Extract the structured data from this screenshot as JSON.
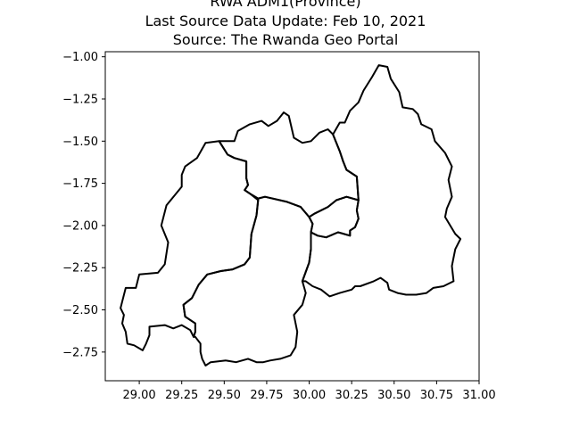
{
  "title": {
    "line1": "RWA ADM1(Province)",
    "line2": "Last Source Data Update: Feb 10, 2021",
    "line3": "Source: The Rwanda Geo Portal"
  },
  "chart_data": {
    "type": "map",
    "xlim": [
      28.8,
      31.0
    ],
    "ylim": [
      -2.92,
      -0.97
    ],
    "x_ticks": [
      "29.00",
      "29.25",
      "29.50",
      "29.75",
      "30.00",
      "30.25",
      "30.50",
      "30.75",
      "31.00"
    ],
    "x_tick_values": [
      29.0,
      29.25,
      29.5,
      29.75,
      30.0,
      30.25,
      30.5,
      30.75,
      31.0
    ],
    "y_ticks": [
      "−1.00",
      "−1.25",
      "−1.50",
      "−1.75",
      "−2.00",
      "−2.25",
      "−2.50",
      "−2.75"
    ],
    "y_tick_values": [
      -1.0,
      -1.25,
      -1.5,
      -1.75,
      -2.0,
      -2.25,
      -2.5,
      -2.75
    ],
    "grid": false,
    "regions": [
      {
        "id": "west",
        "coords": [
          [
            29.47,
            -1.5
          ],
          [
            29.39,
            -1.51
          ],
          [
            29.34,
            -1.6
          ],
          [
            29.27,
            -1.65
          ],
          [
            29.25,
            -1.7
          ],
          [
            29.25,
            -1.77
          ],
          [
            29.16,
            -1.88
          ],
          [
            29.13,
            -2.0
          ],
          [
            29.17,
            -2.1
          ],
          [
            29.15,
            -2.23
          ],
          [
            29.11,
            -2.28
          ],
          [
            29.0,
            -2.29
          ],
          [
            28.98,
            -2.37
          ],
          [
            28.92,
            -2.37
          ],
          [
            28.9,
            -2.45
          ],
          [
            28.89,
            -2.49
          ],
          [
            28.91,
            -2.53
          ],
          [
            28.9,
            -2.58
          ],
          [
            28.92,
            -2.63
          ],
          [
            28.93,
            -2.7
          ],
          [
            28.97,
            -2.71
          ],
          [
            29.02,
            -2.74
          ],
          [
            29.04,
            -2.7
          ],
          [
            29.06,
            -2.65
          ],
          [
            29.06,
            -2.6
          ],
          [
            29.15,
            -2.59
          ],
          [
            29.2,
            -2.61
          ],
          [
            29.25,
            -2.59
          ],
          [
            29.3,
            -2.62
          ],
          [
            29.32,
            -2.66
          ],
          [
            29.33,
            -2.63
          ],
          [
            29.33,
            -2.58
          ],
          [
            29.27,
            -2.54
          ],
          [
            29.26,
            -2.47
          ],
          [
            29.31,
            -2.43
          ],
          [
            29.35,
            -2.35
          ],
          [
            29.4,
            -2.29
          ],
          [
            29.48,
            -2.27
          ],
          [
            29.55,
            -2.26
          ],
          [
            29.62,
            -2.23
          ],
          [
            29.65,
            -2.19
          ],
          [
            29.66,
            -2.05
          ],
          [
            29.69,
            -1.94
          ],
          [
            29.7,
            -1.85
          ],
          [
            29.65,
            -1.81
          ],
          [
            29.62,
            -1.79
          ],
          [
            29.64,
            -1.76
          ],
          [
            29.63,
            -1.72
          ],
          [
            29.63,
            -1.62
          ],
          [
            29.56,
            -1.6
          ],
          [
            29.52,
            -1.58
          ],
          [
            29.47,
            -1.5
          ]
        ]
      },
      {
        "id": "north",
        "coords": [
          [
            29.47,
            -1.5
          ],
          [
            29.56,
            -1.5
          ],
          [
            29.58,
            -1.44
          ],
          [
            29.65,
            -1.4
          ],
          [
            29.72,
            -1.38
          ],
          [
            29.76,
            -1.41
          ],
          [
            29.81,
            -1.38
          ],
          [
            29.85,
            -1.33
          ],
          [
            29.88,
            -1.35
          ],
          [
            29.91,
            -1.48
          ],
          [
            29.96,
            -1.51
          ],
          [
            30.01,
            -1.5
          ],
          [
            30.06,
            -1.45
          ],
          [
            30.11,
            -1.43
          ],
          [
            30.14,
            -1.46
          ],
          [
            30.18,
            -1.56
          ],
          [
            30.2,
            -1.62
          ],
          [
            30.22,
            -1.67
          ],
          [
            30.28,
            -1.71
          ],
          [
            30.29,
            -1.85
          ],
          [
            30.22,
            -1.83
          ],
          [
            30.16,
            -1.85
          ],
          [
            30.11,
            -1.89
          ],
          [
            30.03,
            -1.93
          ],
          [
            30.0,
            -1.95
          ],
          [
            29.95,
            -1.89
          ],
          [
            29.87,
            -1.86
          ],
          [
            29.74,
            -1.83
          ],
          [
            29.7,
            -1.84
          ],
          [
            29.65,
            -1.81
          ],
          [
            29.62,
            -1.79
          ],
          [
            29.64,
            -1.76
          ],
          [
            29.63,
            -1.72
          ],
          [
            29.63,
            -1.62
          ],
          [
            29.56,
            -1.6
          ],
          [
            29.52,
            -1.58
          ],
          [
            29.47,
            -1.5
          ]
        ]
      },
      {
        "id": "kigali",
        "coords": [
          [
            30.0,
            -1.95
          ],
          [
            30.03,
            -1.93
          ],
          [
            30.11,
            -1.89
          ],
          [
            30.16,
            -1.85
          ],
          [
            30.22,
            -1.83
          ],
          [
            30.29,
            -1.85
          ],
          [
            30.28,
            -1.91
          ],
          [
            30.29,
            -1.96
          ],
          [
            30.27,
            -2.01
          ],
          [
            30.24,
            -2.03
          ],
          [
            30.24,
            -2.06
          ],
          [
            30.17,
            -2.04
          ],
          [
            30.1,
            -2.07
          ],
          [
            30.05,
            -2.06
          ],
          [
            30.01,
            -2.04
          ],
          [
            30.02,
            -1.99
          ],
          [
            30.0,
            -1.95
          ]
        ]
      },
      {
        "id": "east",
        "coords": [
          [
            30.14,
            -1.46
          ],
          [
            30.18,
            -1.39
          ],
          [
            30.21,
            -1.39
          ],
          [
            30.24,
            -1.32
          ],
          [
            30.29,
            -1.27
          ],
          [
            30.32,
            -1.2
          ],
          [
            30.37,
            -1.12
          ],
          [
            30.41,
            -1.05
          ],
          [
            30.46,
            -1.06
          ],
          [
            30.48,
            -1.13
          ],
          [
            30.53,
            -1.21
          ],
          [
            30.55,
            -1.3
          ],
          [
            30.61,
            -1.31
          ],
          [
            30.64,
            -1.34
          ],
          [
            30.66,
            -1.4
          ],
          [
            30.72,
            -1.43
          ],
          [
            30.74,
            -1.5
          ],
          [
            30.8,
            -1.57
          ],
          [
            30.84,
            -1.65
          ],
          [
            30.82,
            -1.73
          ],
          [
            30.84,
            -1.83
          ],
          [
            30.81,
            -1.9
          ],
          [
            30.8,
            -1.95
          ],
          [
            30.83,
            -2.0
          ],
          [
            30.86,
            -2.05
          ],
          [
            30.89,
            -2.08
          ],
          [
            30.86,
            -2.14
          ],
          [
            30.84,
            -2.24
          ],
          [
            30.85,
            -2.33
          ],
          [
            30.79,
            -2.36
          ],
          [
            30.73,
            -2.37
          ],
          [
            30.69,
            -2.4
          ],
          [
            30.63,
            -2.41
          ],
          [
            30.57,
            -2.41
          ],
          [
            30.52,
            -2.4
          ],
          [
            30.47,
            -2.38
          ],
          [
            30.46,
            -2.34
          ],
          [
            30.42,
            -2.31
          ],
          [
            30.38,
            -2.33
          ],
          [
            30.3,
            -2.36
          ],
          [
            30.27,
            -2.36
          ],
          [
            30.25,
            -2.38
          ],
          [
            30.18,
            -2.4
          ],
          [
            30.12,
            -2.42
          ],
          [
            30.07,
            -2.38
          ],
          [
            30.02,
            -2.36
          ],
          [
            29.98,
            -2.33
          ],
          [
            29.96,
            -2.33
          ],
          [
            30.0,
            -2.22
          ],
          [
            30.01,
            -2.14
          ],
          [
            30.01,
            -2.04
          ],
          [
            30.05,
            -2.06
          ],
          [
            30.1,
            -2.07
          ],
          [
            30.17,
            -2.04
          ],
          [
            30.24,
            -2.06
          ],
          [
            30.24,
            -2.03
          ],
          [
            30.27,
            -2.01
          ],
          [
            30.29,
            -1.96
          ],
          [
            30.28,
            -1.91
          ],
          [
            30.29,
            -1.85
          ],
          [
            30.28,
            -1.71
          ],
          [
            30.22,
            -1.67
          ],
          [
            30.2,
            -1.62
          ],
          [
            30.18,
            -1.56
          ],
          [
            30.14,
            -1.46
          ]
        ]
      },
      {
        "id": "south",
        "coords": [
          [
            29.7,
            -1.84
          ],
          [
            29.74,
            -1.83
          ],
          [
            29.87,
            -1.86
          ],
          [
            29.95,
            -1.89
          ],
          [
            30.0,
            -1.95
          ],
          [
            30.02,
            -1.99
          ],
          [
            30.01,
            -2.04
          ],
          [
            30.01,
            -2.14
          ],
          [
            30.0,
            -2.22
          ],
          [
            29.96,
            -2.33
          ],
          [
            29.98,
            -2.4
          ],
          [
            29.96,
            -2.47
          ],
          [
            29.91,
            -2.53
          ],
          [
            29.93,
            -2.63
          ],
          [
            29.92,
            -2.72
          ],
          [
            29.89,
            -2.77
          ],
          [
            29.83,
            -2.79
          ],
          [
            29.77,
            -2.8
          ],
          [
            29.73,
            -2.81
          ],
          [
            29.69,
            -2.81
          ],
          [
            29.64,
            -2.79
          ],
          [
            29.57,
            -2.81
          ],
          [
            29.51,
            -2.8
          ],
          [
            29.42,
            -2.81
          ],
          [
            29.39,
            -2.83
          ],
          [
            29.37,
            -2.79
          ],
          [
            29.36,
            -2.75
          ],
          [
            29.36,
            -2.7
          ],
          [
            29.33,
            -2.66
          ],
          [
            29.32,
            -2.66
          ],
          [
            29.33,
            -2.63
          ],
          [
            29.33,
            -2.58
          ],
          [
            29.27,
            -2.54
          ],
          [
            29.26,
            -2.47
          ],
          [
            29.31,
            -2.43
          ],
          [
            29.35,
            -2.35
          ],
          [
            29.4,
            -2.29
          ],
          [
            29.48,
            -2.27
          ],
          [
            29.55,
            -2.26
          ],
          [
            29.62,
            -2.23
          ],
          [
            29.65,
            -2.19
          ],
          [
            29.66,
            -2.05
          ],
          [
            29.69,
            -1.94
          ],
          [
            29.7,
            -1.84
          ]
        ]
      }
    ]
  }
}
